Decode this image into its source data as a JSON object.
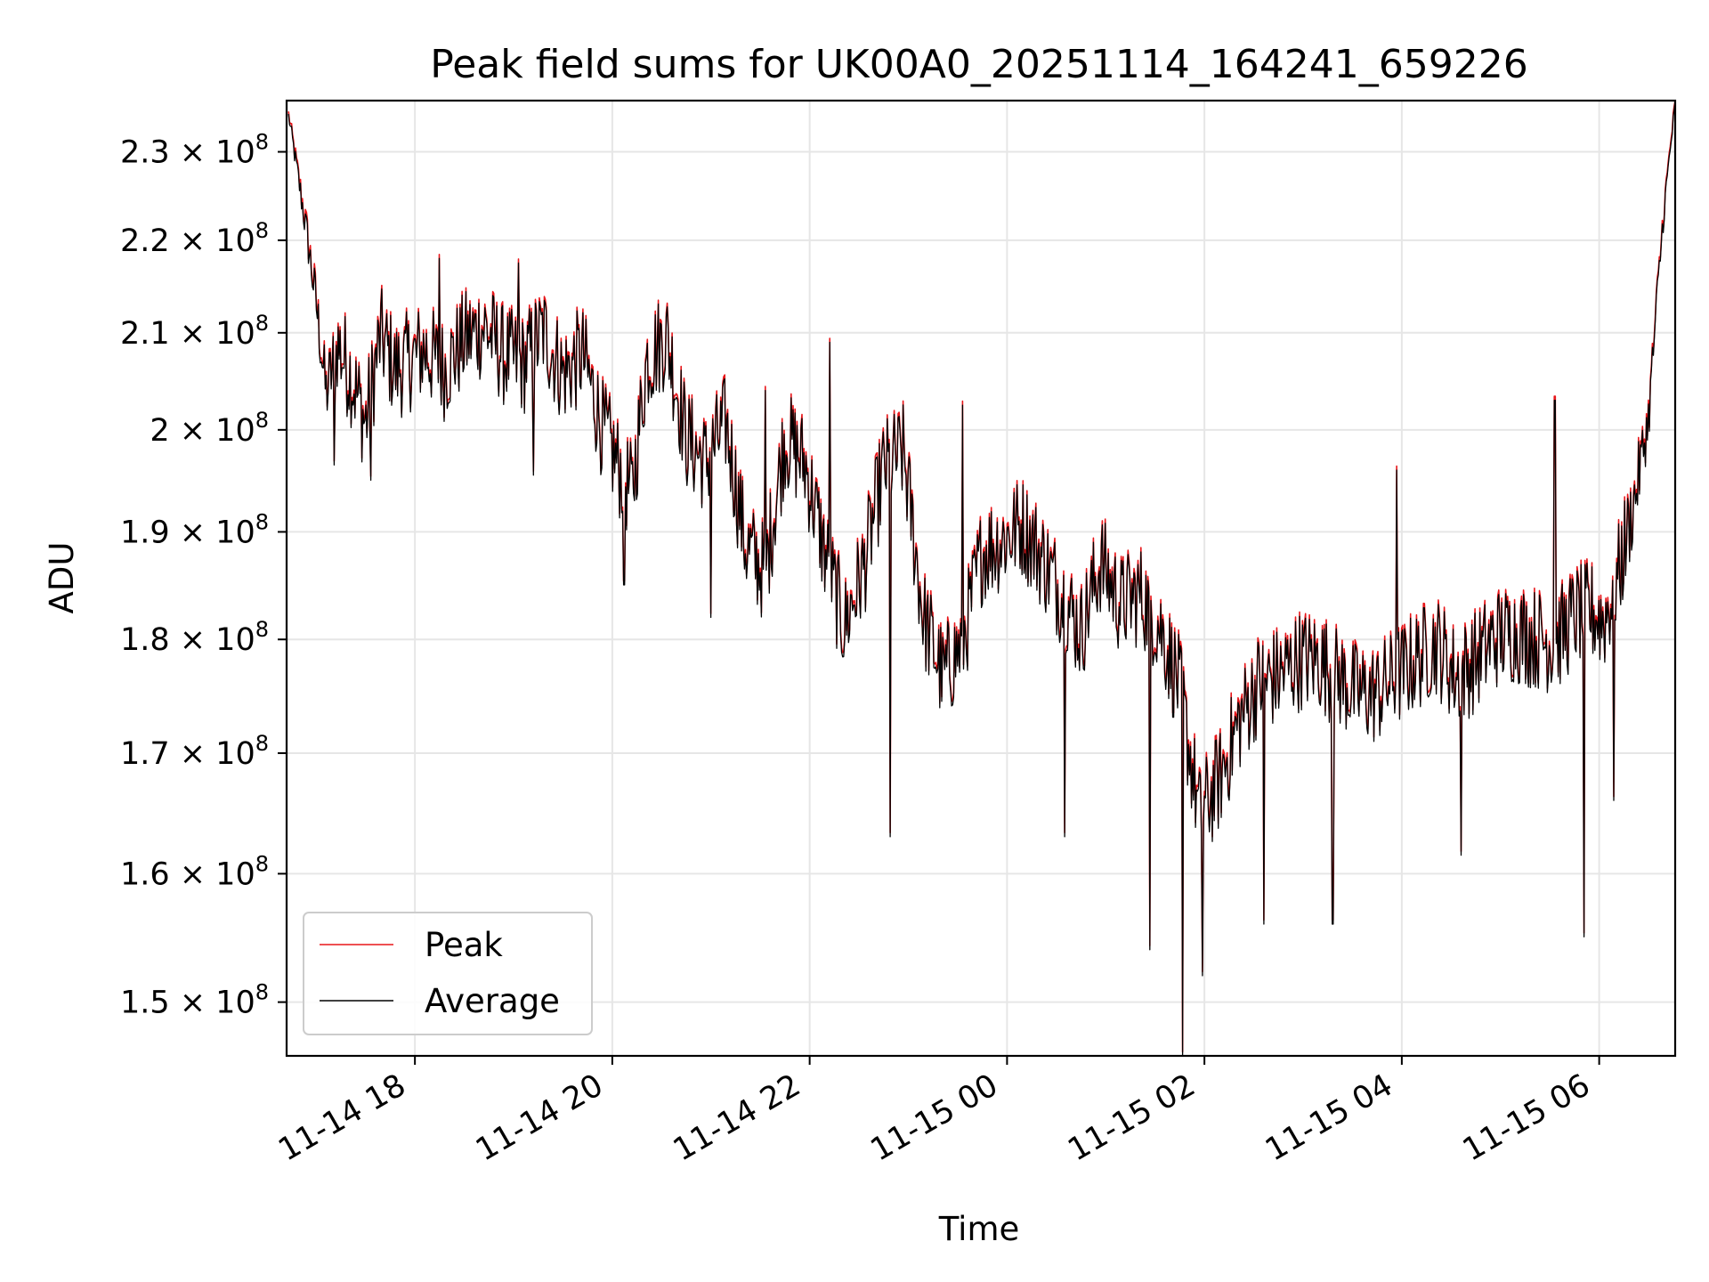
{
  "chart_data": {
    "type": "line",
    "title": "Peak field sums for UK00A0_20251114_164241_659226",
    "xlabel": "Time",
    "ylabel": "ADU",
    "yscale": "log",
    "grid": true,
    "legend_position": "lower-left",
    "xlim_hours": [
      16.7,
      30.77
    ],
    "ylim": [
      146000000,
      236000000
    ],
    "x_ticks": [
      {
        "hours": 18,
        "label": "11-14 18"
      },
      {
        "hours": 20,
        "label": "11-14 20"
      },
      {
        "hours": 22,
        "label": "11-14 22"
      },
      {
        "hours": 24,
        "label": "11-15 00"
      },
      {
        "hours": 26,
        "label": "11-15 02"
      },
      {
        "hours": 28,
        "label": "11-15 04"
      },
      {
        "hours": 30,
        "label": "11-15 06"
      }
    ],
    "y_ticks": [
      {
        "value": 150000000,
        "mantissa": "1.5",
        "base": "10",
        "exponent": "8"
      },
      {
        "value": 160000000,
        "mantissa": "1.6",
        "base": "10",
        "exponent": "8"
      },
      {
        "value": 170000000,
        "mantissa": "1.7",
        "base": "10",
        "exponent": "8"
      },
      {
        "value": 180000000,
        "mantissa": "1.8",
        "base": "10",
        "exponent": "8"
      },
      {
        "value": 190000000,
        "mantissa": "1.9",
        "base": "10",
        "exponent": "8"
      },
      {
        "value": 200000000,
        "mantissa": "2",
        "base": "10",
        "exponent": "8"
      },
      {
        "value": 210000000,
        "mantissa": "2.1",
        "base": "10",
        "exponent": "8"
      },
      {
        "value": 220000000,
        "mantissa": "2.2",
        "base": "10",
        "exponent": "8"
      },
      {
        "value": 230000000,
        "mantissa": "2.3",
        "base": "10",
        "exponent": "8"
      }
    ],
    "times_label": "hours since 2025-11-14 00:00",
    "times": [
      16.72,
      16.9,
      17.0,
      17.1,
      17.22,
      17.35,
      17.5,
      17.65,
      17.8,
      17.95,
      18.1,
      18.3,
      18.5,
      18.7,
      18.9,
      19.1,
      19.3,
      19.5,
      19.7,
      19.9,
      20.05,
      20.2,
      20.35,
      20.55,
      20.75,
      20.95,
      21.15,
      21.35,
      21.55,
      21.75,
      21.95,
      22.15,
      22.35,
      22.55,
      22.75,
      22.95,
      23.15,
      23.35,
      23.55,
      23.75,
      23.95,
      24.15,
      24.35,
      24.55,
      24.75,
      24.95,
      25.15,
      25.35,
      25.55,
      25.75,
      25.95,
      26.15,
      26.35,
      26.55,
      26.75,
      26.95,
      27.15,
      27.35,
      27.55,
      27.75,
      27.95,
      28.15,
      28.35,
      28.55,
      28.75,
      28.95,
      29.15,
      29.35,
      29.55,
      29.75,
      29.9,
      30.05,
      30.2,
      30.35,
      30.5,
      30.65,
      30.77
    ],
    "series": [
      {
        "name": "Peak",
        "color": "#e8161a",
        "values": [
          234500000,
          221500000,
          213500000,
          204000000,
          209000000,
          206000000,
          201000000,
          210000000,
          206500000,
          207500000,
          208500000,
          206500000,
          209500000,
          211000000,
          208000000,
          207000000,
          210500000,
          206000000,
          208000000,
          200500000,
          197000000,
          194000000,
          207500000,
          210000000,
          199500000,
          197000000,
          201000000,
          189000000,
          186500000,
          199500000,
          197000000,
          188500000,
          181500000,
          187000000,
          196500000,
          198000000,
          182500000,
          177000000,
          180000000,
          188500000,
          189500000,
          191000000,
          188000000,
          184500000,
          181000000,
          187500000,
          183500000,
          184500000,
          181500000,
          176000000,
          165000000,
          168000000,
          173000000,
          176500000,
          177000000,
          178500000,
          178500000,
          177000000,
          175500000,
          175500000,
          177000000,
          178500000,
          180000000,
          177000000,
          178500000,
          180500000,
          181000000,
          180500000,
          180000000,
          182500000,
          183000000,
          182000000,
          186500000,
          193000000,
          201500000,
          223000000,
          236000000
        ]
      },
      {
        "name": "Average",
        "color": "#000000",
        "values": [
          234200000,
          221000000,
          213000000,
          203600000,
          208600000,
          205600000,
          200600000,
          209600000,
          206100000,
          207100000,
          208100000,
          206100000,
          209100000,
          210600000,
          207600000,
          206600000,
          210100000,
          205600000,
          207600000,
          200100000,
          196600000,
          193600000,
          207100000,
          209600000,
          199100000,
          196600000,
          200600000,
          188600000,
          186100000,
          199100000,
          196600000,
          188100000,
          181100000,
          186600000,
          196100000,
          197600000,
          182100000,
          176600000,
          179600000,
          188100000,
          189100000,
          190600000,
          187600000,
          184100000,
          180600000,
          187100000,
          183100000,
          184100000,
          181100000,
          175600000,
          164600000,
          167600000,
          172600000,
          176100000,
          176600000,
          178100000,
          178100000,
          176600000,
          175100000,
          175100000,
          176600000,
          178100000,
          179600000,
          176600000,
          178100000,
          180100000,
          180600000,
          180100000,
          179600000,
          182100000,
          182600000,
          181600000,
          186100000,
          192600000,
          201100000,
          222600000,
          235600000
        ]
      }
    ],
    "spikes": [
      {
        "t": 17.18,
        "v": 196500000
      },
      {
        "t": 17.55,
        "v": 195000000
      },
      {
        "t": 18.25,
        "v": 218000000
      },
      {
        "t": 19.05,
        "v": 217500000
      },
      {
        "t": 19.2,
        "v": 195500000
      },
      {
        "t": 20.12,
        "v": 185000000
      },
      {
        "t": 21.0,
        "v": 182000000
      },
      {
        "t": 21.55,
        "v": 204000000
      },
      {
        "t": 22.2,
        "v": 209000000
      },
      {
        "t": 22.82,
        "v": 163000000
      },
      {
        "t": 23.55,
        "v": 202500000
      },
      {
        "t": 24.58,
        "v": 163000000
      },
      {
        "t": 25.45,
        "v": 154000000
      },
      {
        "t": 25.78,
        "v": 146000000
      },
      {
        "t": 25.98,
        "v": 152000000
      },
      {
        "t": 26.6,
        "v": 156000000
      },
      {
        "t": 27.3,
        "v": 156000000
      },
      {
        "t": 27.95,
        "v": 196000000
      },
      {
        "t": 28.6,
        "v": 161500000
      },
      {
        "t": 29.55,
        "v": 203000000
      },
      {
        "t": 29.85,
        "v": 155000000
      },
      {
        "t": 30.15,
        "v": 166000000
      }
    ]
  }
}
